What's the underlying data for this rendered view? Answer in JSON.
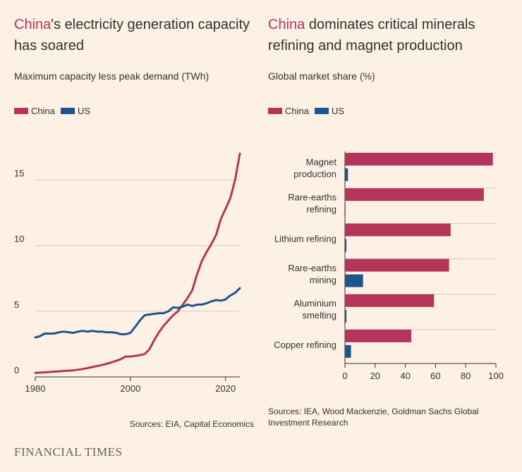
{
  "left": {
    "title_highlight": "China",
    "title_rest": "'s electricity generation capacity has soared",
    "subtitle": "Maximum capacity less peak demand (TWh)",
    "legend": [
      {
        "label": "China",
        "color": "#b5355a"
      },
      {
        "label": "US",
        "color": "#1e558c"
      }
    ],
    "source": "Sources: EIA, Capital Economics"
  },
  "right": {
    "title_highlight": "China",
    "title_rest": " dominates critical minerals refining and magnet production",
    "subtitle": "Global market share (%)",
    "legend": [
      {
        "label": "China",
        "color": "#b5355a"
      },
      {
        "label": "US",
        "color": "#1e558c"
      }
    ],
    "source": "Sources: IEA, Wood Mackenzie, Goldman Sachs Global Investment Research"
  },
  "brand": "FINANCIAL TIMES",
  "colors": {
    "china": "#b5355a",
    "us": "#1e558c",
    "grid": "#d6cbc0",
    "axis": "#33302e"
  },
  "chart_data": [
    {
      "type": "line",
      "title": "China's electricity generation capacity has soared",
      "ylabel": "Maximum capacity less peak demand (TWh)",
      "xlim": [
        1980,
        2023
      ],
      "ylim": [
        0,
        17
      ],
      "xticks": [
        "1980",
        "2000",
        "2020"
      ],
      "yticks": [
        "0",
        "5",
        "10",
        "15"
      ],
      "series": [
        {
          "name": "China",
          "x": [
            1980,
            1982,
            1984,
            1986,
            1988,
            1990,
            1992,
            1994,
            1996,
            1998,
            1999,
            2000,
            2001,
            2002,
            2003,
            2004,
            2005,
            2006,
            2007,
            2008,
            2009,
            2010,
            2011,
            2012,
            2013,
            2014,
            2015,
            2016,
            2017,
            2018,
            2019,
            2020,
            2021,
            2022,
            2023
          ],
          "values": [
            0.3,
            0.35,
            0.4,
            0.45,
            0.5,
            0.6,
            0.75,
            0.9,
            1.1,
            1.35,
            1.55,
            1.55,
            1.6,
            1.65,
            1.75,
            2.1,
            2.8,
            3.4,
            3.9,
            4.3,
            4.7,
            5.0,
            5.5,
            6.0,
            6.6,
            7.8,
            8.8,
            9.5,
            10.1,
            10.8,
            12.0,
            12.8,
            13.6,
            15.0,
            17.0
          ]
        },
        {
          "name": "US",
          "x": [
            1980,
            1981,
            1982,
            1983,
            1984,
            1985,
            1986,
            1987,
            1988,
            1989,
            1990,
            1991,
            1992,
            1993,
            1994,
            1995,
            1996,
            1997,
            1998,
            1999,
            2000,
            2001,
            2002,
            2003,
            2004,
            2005,
            2006,
            2007,
            2008,
            2009,
            2010,
            2011,
            2012,
            2013,
            2014,
            2015,
            2016,
            2017,
            2018,
            2019,
            2020,
            2021,
            2022,
            2023
          ],
          "values": [
            3.0,
            3.1,
            3.3,
            3.3,
            3.3,
            3.4,
            3.45,
            3.4,
            3.35,
            3.45,
            3.5,
            3.45,
            3.5,
            3.45,
            3.45,
            3.4,
            3.4,
            3.35,
            3.25,
            3.25,
            3.35,
            3.8,
            4.3,
            4.7,
            4.75,
            4.8,
            4.85,
            4.85,
            5.0,
            5.3,
            5.25,
            5.35,
            5.5,
            5.4,
            5.5,
            5.5,
            5.6,
            5.75,
            5.85,
            5.8,
            5.9,
            6.2,
            6.4,
            6.75
          ]
        }
      ]
    },
    {
      "type": "bar",
      "orientation": "horizontal",
      "title": "China dominates critical minerals refining and magnet production",
      "xlabel": "Global market share (%)",
      "xlim": [
        0,
        100
      ],
      "xticks": [
        "0",
        "20",
        "40",
        "60",
        "80",
        "100"
      ],
      "categories": [
        [
          "Magnet",
          "production"
        ],
        [
          "Rare-earths",
          "refining"
        ],
        [
          "Lithium refining"
        ],
        [
          "Rare-earths",
          "mining"
        ],
        [
          "Aluminium",
          "smelting"
        ],
        [
          "Copper refining"
        ]
      ],
      "series": [
        {
          "name": "China",
          "values": [
            98,
            92,
            70,
            69,
            59,
            44
          ]
        },
        {
          "name": "US",
          "values": [
            2,
            0,
            1,
            12,
            1,
            4
          ]
        }
      ]
    }
  ]
}
